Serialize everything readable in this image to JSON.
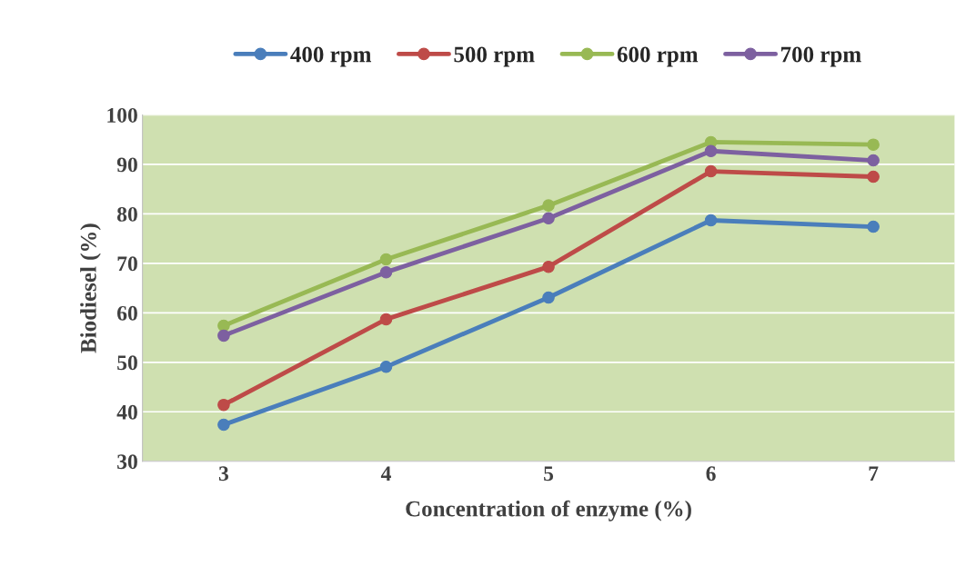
{
  "chart_data": {
    "type": "line",
    "xlabel": "Concentration of enzyme (%)",
    "ylabel": "Biodiesel (%)",
    "categories": [
      "3",
      "4",
      "5",
      "6",
      "7"
    ],
    "series": [
      {
        "name": "400 rpm",
        "color": "#4a7ebb",
        "values": [
          37.4,
          49.1,
          63.1,
          78.7,
          77.4
        ]
      },
      {
        "name": "500 rpm",
        "color": "#be4b48",
        "values": [
          41.4,
          58.7,
          69.3,
          88.6,
          87.5
        ]
      },
      {
        "name": "600 rpm",
        "color": "#98b954",
        "values": [
          57.4,
          70.8,
          81.7,
          94.5,
          94.0
        ]
      },
      {
        "name": "700 rpm",
        "color": "#7d60a0",
        "values": [
          55.4,
          68.2,
          79.1,
          92.7,
          90.8
        ]
      }
    ],
    "ylim": [
      30,
      100
    ],
    "yticks": [
      30,
      40,
      50,
      60,
      70,
      80,
      90,
      100
    ],
    "grid": "y",
    "legend": "top",
    "marker": "circle"
  }
}
